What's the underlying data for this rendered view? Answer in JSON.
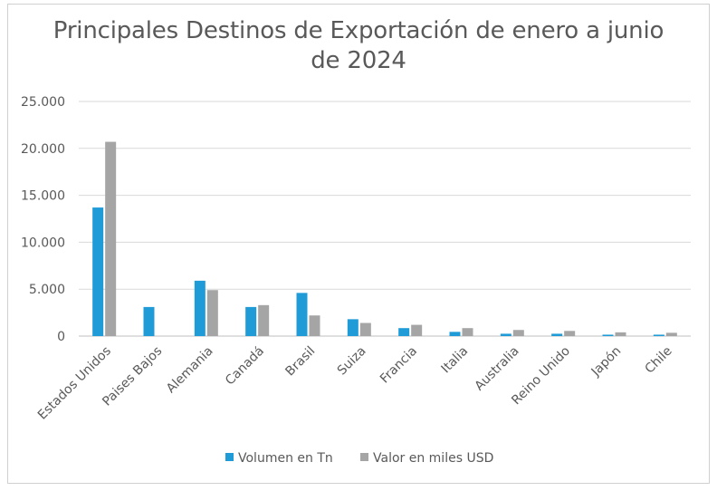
{
  "chart_data": {
    "type": "bar",
    "title_line1": "Principales Destinos de Exportación de enero a junio",
    "title_line2": "de 2024",
    "categories": [
      "Estados Unidos",
      "Paises Bajos",
      "Alemania",
      "Canadá",
      "Brasil",
      "Suiza",
      "Francia",
      "Italia",
      "Australia",
      "Reino Unido",
      "Japón",
      "Chile"
    ],
    "series": [
      {
        "name": "Volumen en Tn",
        "color": "#1f9bd7",
        "values": [
          13700,
          3100,
          5900,
          3100,
          4600,
          1800,
          850,
          450,
          250,
          250,
          150,
          150
        ]
      },
      {
        "name": "Valor en miles USD",
        "color": "#a5a5a5",
        "values": [
          20700,
          0,
          4900,
          3300,
          2200,
          1400,
          1200,
          850,
          650,
          550,
          400,
          350
        ]
      }
    ],
    "yticks": [
      "0",
      "5.000",
      "10.000",
      "15.000",
      "20.000",
      "25.000"
    ],
    "ylim": [
      0,
      25000
    ],
    "grid": true,
    "legend_position": "bottom"
  }
}
